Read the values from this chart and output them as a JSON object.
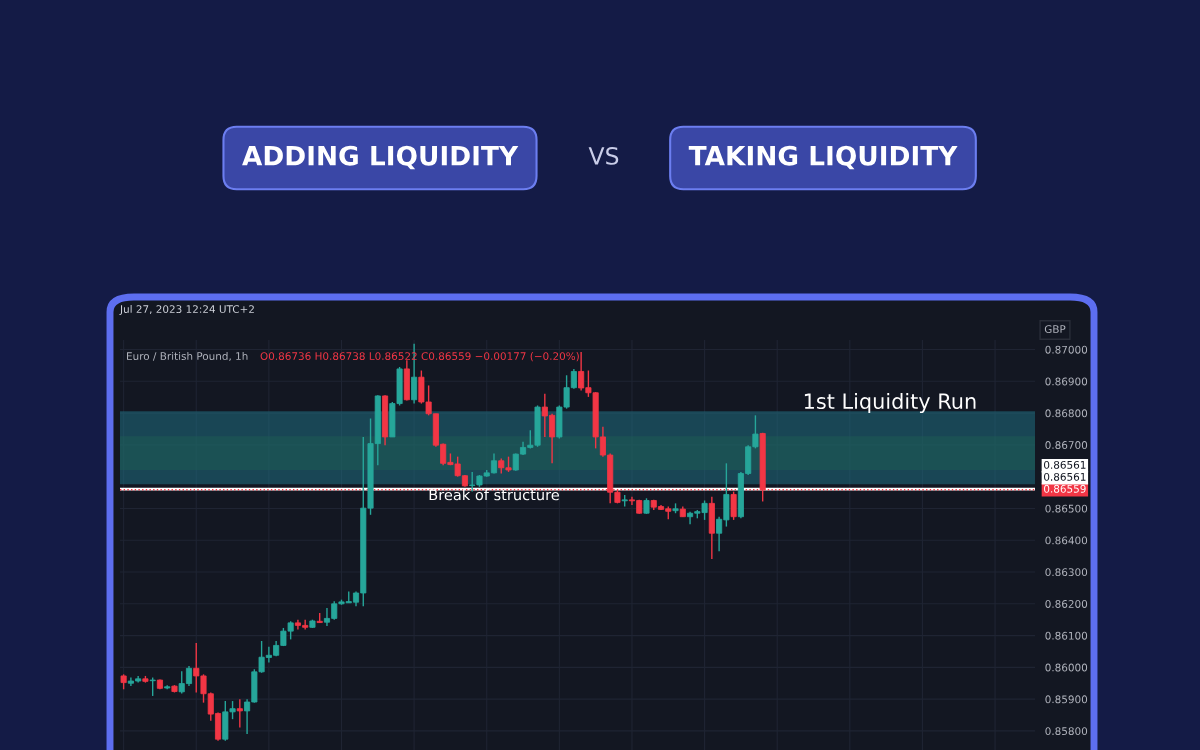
{
  "chart_data": {
    "type": "candlestick",
    "title": "Euro / British Pound, 1h",
    "subtitle": "O0.86736 H0.86738 L0.86522 C0.86559 −0.00177 (−0.20%)",
    "ylabel": "GBP",
    "annotations": [
      "ADDING LIQUIDITY",
      "VS",
      "TAKING LIQUIDITY",
      "Jul 27, 2023 12:24 UTC+2",
      {
        "text": "1st Liquidity Run",
        "y": 0.86806
      },
      "0.86561",
      "0.86561"
    ],
    "categories": [
      null,
      null,
      null,
      null,
      null,
      null,
      null,
      null,
      null,
      null,
      null,
      null,
      null,
      null,
      null,
      null,
      null,
      null,
      null,
      null,
      null,
      null,
      null,
      null,
      null,
      null,
      null,
      null,
      null,
      null,
      null,
      null,
      null,
      null,
      null,
      null,
      null,
      null,
      null,
      null,
      null,
      null,
      null,
      null,
      null,
      null,
      null,
      null,
      null,
      null,
      null,
      null,
      null,
      null,
      null,
      null,
      null,
      null,
      null,
      null,
      null,
      null,
      null,
      null,
      null,
      null,
      null,
      null,
      null,
      null,
      null,
      null,
      null,
      null,
      null,
      null,
      null,
      null,
      null,
      null,
      null,
      null,
      null,
      null,
      null,
      null,
      null,
      null,
      null,
      null,
      null,
      null,
      null,
      null,
      null,
      null,
      null,
      null,
      null,
      null,
      null,
      null,
      null,
      null,
      null,
      null,
      null,
      null,
      null,
      null,
      null,
      null,
      null,
      null,
      null,
      null,
      null,
      null,
      null,
      null,
      null,
      null,
      null,
      null,
      null,
      null
    ],
    "ohlc": [
      [
        0.85973,
        0.85978,
        0.85931,
        0.85952
      ],
      [
        0.8595,
        0.85968,
        0.85941,
        0.85957
      ],
      [
        0.85957,
        0.85973,
        0.85952,
        0.85964
      ],
      [
        0.85964,
        0.85973,
        0.85952,
        0.85956
      ],
      [
        0.85958,
        0.85968,
        0.8591,
        0.8596
      ],
      [
        0.8596,
        0.85962,
        0.85931,
        0.85934
      ],
      [
        0.85935,
        0.85944,
        0.85931,
        0.85939
      ],
      [
        0.85941,
        0.85944,
        0.85921,
        0.85924
      ],
      [
        0.85923,
        0.85988,
        0.85918,
        0.85949
      ],
      [
        0.85949,
        0.86004,
        0.85941,
        0.85997
      ],
      [
        0.85997,
        0.86077,
        0.85921,
        0.85973
      ],
      [
        0.85973,
        0.85978,
        0.85889,
        0.85917
      ],
      [
        0.85917,
        0.85921,
        0.85832,
        0.85853
      ],
      [
        0.85855,
        0.85858,
        0.85769,
        0.85774
      ],
      [
        0.85774,
        0.85894,
        0.85769,
        0.8586
      ],
      [
        0.8586,
        0.85894,
        0.85837,
        0.8587
      ],
      [
        0.8587,
        0.859,
        0.85811,
        0.85863
      ],
      [
        0.85863,
        0.859,
        0.8579,
        0.85891
      ],
      [
        0.85891,
        0.85994,
        0.85889,
        0.85986
      ],
      [
        0.85986,
        0.86083,
        0.85983,
        0.86032
      ],
      [
        0.86031,
        0.86065,
        0.86015,
        0.86038
      ],
      [
        0.86038,
        0.86083,
        0.86035,
        0.86069
      ],
      [
        0.86069,
        0.86124,
        0.86067,
        0.86114
      ],
      [
        0.86114,
        0.86145,
        0.86088,
        0.8614
      ],
      [
        0.8614,
        0.8615,
        0.86119,
        0.86132
      ],
      [
        0.86132,
        0.8615,
        0.86119,
        0.86126
      ],
      [
        0.86126,
        0.8615,
        0.86124,
        0.86146
      ],
      [
        0.86145,
        0.86171,
        0.8614,
        0.86141
      ],
      [
        0.86142,
        0.86187,
        0.8613,
        0.86154
      ],
      [
        0.86154,
        0.86208,
        0.8615,
        0.862
      ],
      [
        0.862,
        0.86213,
        0.86197,
        0.86206
      ],
      [
        0.86203,
        0.86239,
        0.86203,
        0.86207
      ],
      [
        0.86205,
        0.86239,
        0.86192,
        0.86234
      ],
      [
        0.86234,
        0.86725,
        0.86192,
        0.86501
      ],
      [
        0.86501,
        0.86783,
        0.8648,
        0.86704
      ],
      [
        0.86704,
        0.86856,
        0.86636,
        0.86854
      ],
      [
        0.86854,
        0.86856,
        0.86699,
        0.86725
      ],
      [
        0.86725,
        0.86835,
        0.86725,
        0.8683
      ],
      [
        0.8683,
        0.86945,
        0.86824,
        0.86939
      ],
      [
        0.86939,
        0.86966,
        0.8684,
        0.86842
      ],
      [
        0.86842,
        0.87018,
        0.8683,
        0.86913
      ],
      [
        0.86913,
        0.86934,
        0.8683,
        0.86835
      ],
      [
        0.86835,
        0.86887,
        0.86793,
        0.86798
      ],
      [
        0.86798,
        0.86798,
        0.86694,
        0.86699
      ],
      [
        0.86702,
        0.86704,
        0.86636,
        0.86642
      ],
      [
        0.86645,
        0.86673,
        0.86636,
        0.86638
      ],
      [
        0.8664,
        0.86663,
        0.866,
        0.86603
      ],
      [
        0.86603,
        0.86605,
        0.86568,
        0.86571
      ],
      [
        0.86572,
        0.86615,
        0.86553,
        0.86574
      ],
      [
        0.86574,
        0.86605,
        0.86568,
        0.86602
      ],
      [
        0.86602,
        0.86621,
        0.866,
        0.86612
      ],
      [
        0.86612,
        0.86673,
        0.8661,
        0.8665
      ],
      [
        0.8665,
        0.86657,
        0.8661,
        0.86628
      ],
      [
        0.86628,
        0.86663,
        0.86615,
        0.86621
      ],
      [
        0.86621,
        0.86673,
        0.86619,
        0.86671
      ],
      [
        0.86671,
        0.8671,
        0.86668,
        0.86692
      ],
      [
        0.86692,
        0.86746,
        0.86689,
        0.86699
      ],
      [
        0.86699,
        0.86824,
        0.86694,
        0.86819
      ],
      [
        0.86819,
        0.86861,
        0.86725,
        0.86791
      ],
      [
        0.86793,
        0.86798,
        0.86642,
        0.86725
      ],
      [
        0.86725,
        0.86824,
        0.8672,
        0.86819
      ],
      [
        0.86819,
        0.86919,
        0.86814,
        0.8688
      ],
      [
        0.8688,
        0.86939,
        0.86877,
        0.86931
      ],
      [
        0.86931,
        0.86992,
        0.86871,
        0.86879
      ],
      [
        0.8688,
        0.86934,
        0.86851,
        0.86864
      ],
      [
        0.86864,
        0.86866,
        0.86689,
        0.86725
      ],
      [
        0.86725,
        0.86757,
        0.86663,
        0.86668
      ],
      [
        0.86668,
        0.86673,
        0.86516,
        0.86551
      ],
      [
        0.86551,
        0.86558,
        0.86516,
        0.86519
      ],
      [
        0.86524,
        0.86542,
        0.86506,
        0.86527
      ],
      [
        0.86527,
        0.86537,
        0.86511,
        0.86524
      ],
      [
        0.86525,
        0.86527,
        0.86483,
        0.86485
      ],
      [
        0.86485,
        0.86532,
        0.86483,
        0.86525
      ],
      [
        0.86525,
        0.86527,
        0.86495,
        0.86504
      ],
      [
        0.86506,
        0.86511,
        0.86495,
        0.86497
      ],
      [
        0.86499,
        0.86506,
        0.86466,
        0.86491
      ],
      [
        0.86493,
        0.86516,
        0.86485,
        0.86499
      ],
      [
        0.86498,
        0.86506,
        0.86474,
        0.86474
      ],
      [
        0.86474,
        0.8649,
        0.8645,
        0.86485
      ],
      [
        0.86485,
        0.86495,
        0.86469,
        0.8649
      ],
      [
        0.86487,
        0.86525,
        0.86464,
        0.86516
      ],
      [
        0.86516,
        0.86537,
        0.86341,
        0.86422
      ],
      [
        0.86422,
        0.86474,
        0.86365,
        0.86466
      ],
      [
        0.86464,
        0.86642,
        0.86443,
        0.86544
      ],
      [
        0.86544,
        0.86553,
        0.86464,
        0.86474
      ],
      [
        0.86474,
        0.86615,
        0.86469,
        0.8661
      ],
      [
        0.8661,
        0.86699,
        0.86605,
        0.86694
      ],
      [
        0.86694,
        0.86793,
        0.86689,
        0.86734
      ],
      [
        0.86736,
        0.86738,
        0.86522,
        0.86559
      ],
      null,
      null,
      null,
      null,
      null,
      null,
      null,
      null,
      null,
      null,
      null,
      null,
      null,
      null,
      null,
      null,
      null,
      null,
      null,
      null,
      null,
      null,
      null,
      null,
      null,
      null,
      null,
      null,
      null,
      null,
      null,
      null,
      null,
      null,
      null,
      null,
      null
    ],
    "colors": [
      "#f23645",
      "#26a69a",
      "#26a69a",
      "#f23645",
      "#26a69a",
      "#f23645",
      "#26a69a",
      "#f23645",
      "#26a69a",
      "#26a69a",
      "#f23645",
      "#f23645",
      "#f23645",
      "#f23645",
      "#26a69a",
      "#26a69a",
      "#f23645",
      "#26a69a",
      "#26a69a",
      "#26a69a",
      "#26a69a",
      "#26a69a",
      "#26a69a",
      "#26a69a",
      "#f23645",
      "#f23645",
      "#26a69a",
      "#f23645",
      "#26a69a",
      "#26a69a",
      "#26a69a",
      "#26a69a",
      "#26a69a",
      "#26a69a",
      "#26a69a",
      "#26a69a",
      "#f23645",
      "#26a69a",
      "#26a69a",
      "#f23645",
      "#26a69a",
      "#f23645",
      "#f23645",
      "#f23645",
      "#f23645",
      "#f23645",
      "#f23645",
      "#f23645",
      "#26a69a",
      "#26a69a",
      "#26a69a",
      "#26a69a",
      "#f23645",
      "#f23645",
      "#26a69a",
      "#26a69a",
      "#26a69a",
      "#26a69a",
      "#f23645",
      "#f23645",
      "#26a69a",
      "#26a69a",
      "#26a69a",
      "#f23645",
      "#f23645",
      "#f23645",
      "#f23645",
      "#f23645",
      "#f23645",
      "#26a69a",
      "#f23645",
      "#f23645",
      "#26a69a",
      "#f23645",
      "#f23645",
      "#f23645",
      "#26a69a",
      "#f23645",
      "#26a69a",
      "#26a69a",
      "#26a69a",
      "#f23645",
      "#26a69a",
      "#26a69a",
      "#f23645",
      "#26a69a",
      "#26a69a",
      "#26a69a",
      "#f23645",
      null,
      null,
      null,
      null,
      null,
      null,
      null,
      null,
      null,
      null,
      null,
      null,
      null,
      null,
      null,
      null,
      null,
      null,
      null,
      null,
      null,
      null,
      null,
      null,
      null,
      null,
      null,
      null,
      null,
      null,
      null,
      null,
      null,
      null,
      null,
      null,
      null
    ],
    "ylim": [
      0.8574,
      0.8703
    ],
    "yticks": [
      {
        "value": 0.858,
        "label": "0.85800"
      },
      {
        "value": 0.859,
        "label": "0.85900"
      },
      {
        "value": 0.86,
        "label": "0.86000"
      },
      {
        "value": 0.861,
        "label": "0.86100"
      },
      {
        "value": 0.862,
        "label": "0.86200"
      },
      {
        "value": 0.863,
        "label": "0.86300"
      },
      {
        "value": 0.864,
        "label": "0.86400"
      },
      {
        "value": 0.865,
        "label": "0.86500"
      },
      {
        "value": 0.867,
        "label": "0.86700"
      },
      {
        "value": 0.868,
        "label": "0.86800"
      },
      {
        "value": 0.869,
        "label": "0.86900"
      },
      {
        "value": 0.87,
        "label": "0.87000"
      }
    ],
    "bands": [
      {
        "axis": "y",
        "from": 0.86621,
        "to": 0.86727,
        "color": "#1e4620"
      },
      {
        "axis": "y",
        "from": 0.86576,
        "to": 0.86806,
        "color": "#1f6e80"
      }
    ],
    "ref_lines": [
      {
        "axis": "y",
        "value": 0.86561,
        "label": "Break of structure",
        "color": "#ffffff",
        "line_style": "solid"
      },
      {
        "axis": "y",
        "value": 0.86559,
        "label": "0.86559",
        "color": "#f23645",
        "line_style": "dotted"
      }
    ],
    "grid": true,
    "tick_labels": "y"
  }
}
